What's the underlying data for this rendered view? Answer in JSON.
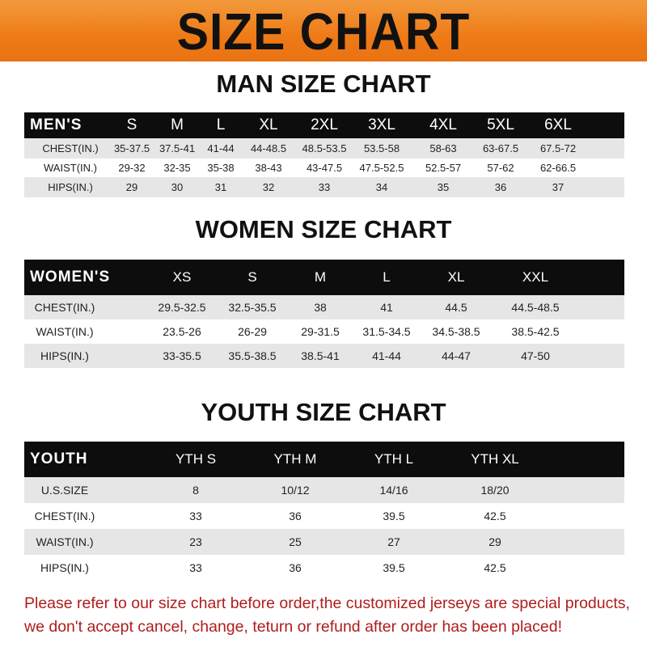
{
  "banner": {
    "title": "SIZE CHART"
  },
  "colors": {
    "banner": "#ee7a16",
    "header_row": "#0d0d0d",
    "stripe": "#e6e6e6",
    "note_text": "#b01c1c"
  },
  "men": {
    "title": "MAN SIZE CHART",
    "header": "MEN'S",
    "sizes": [
      "S",
      "M",
      "L",
      "XL",
      "2XL",
      "3XL",
      "4XL",
      "5XL",
      "6XL"
    ],
    "rows": [
      {
        "label": "CHEST(IN.)",
        "values": [
          "35-37.5",
          "37.5-41",
          "41-44",
          "44-48.5",
          "48.5-53.5",
          "53.5-58",
          "58-63",
          "63-67.5",
          "67.5-72"
        ]
      },
      {
        "label": "WAIST(IN.)",
        "values": [
          "29-32",
          "32-35",
          "35-38",
          "38-43",
          "43-47.5",
          "47.5-52.5",
          "52.5-57",
          "57-62",
          "62-66.5"
        ]
      },
      {
        "label": "HIPS(IN.)",
        "values": [
          "29",
          "30",
          "31",
          "32",
          "33",
          "34",
          "35",
          "36",
          "37"
        ]
      }
    ]
  },
  "women": {
    "title": "WOMEN SIZE CHART",
    "header": "WOMEN'S",
    "sizes": [
      "XS",
      "S",
      "M",
      "L",
      "XL",
      "XXL"
    ],
    "rows": [
      {
        "label": "CHEST(IN.)",
        "values": [
          "29.5-32.5",
          "32.5-35.5",
          "38",
          "41",
          "44.5",
          "44.5-48.5"
        ]
      },
      {
        "label": "WAIST(IN.)",
        "values": [
          "23.5-26",
          "26-29",
          "29-31.5",
          "31.5-34.5",
          "34.5-38.5",
          "38.5-42.5"
        ]
      },
      {
        "label": "HIPS(IN.)",
        "values": [
          "33-35.5",
          "35.5-38.5",
          "38.5-41",
          "41-44",
          "44-47",
          "47-50"
        ]
      }
    ]
  },
  "youth": {
    "title": "YOUTH SIZE CHART",
    "header": "YOUTH",
    "sizes": [
      "YTH S",
      "YTH M",
      "YTH L",
      "YTH XL"
    ],
    "rows": [
      {
        "label": "U.S.SIZE",
        "values": [
          "8",
          "10/12",
          "14/16",
          "18/20"
        ]
      },
      {
        "label": "CHEST(IN.)",
        "values": [
          "33",
          "36",
          "39.5",
          "42.5"
        ]
      },
      {
        "label": "WAIST(IN.)",
        "values": [
          "23",
          "25",
          "27",
          "29"
        ]
      },
      {
        "label": "HIPS(IN.)",
        "values": [
          "33",
          "36",
          "39.5",
          "42.5"
        ]
      }
    ]
  },
  "note": {
    "line1": "Please refer to our size chart before order,the customized jerseys are special products,",
    "line2": "we don't accept cancel, change, teturn or refund after order has been placed!"
  }
}
